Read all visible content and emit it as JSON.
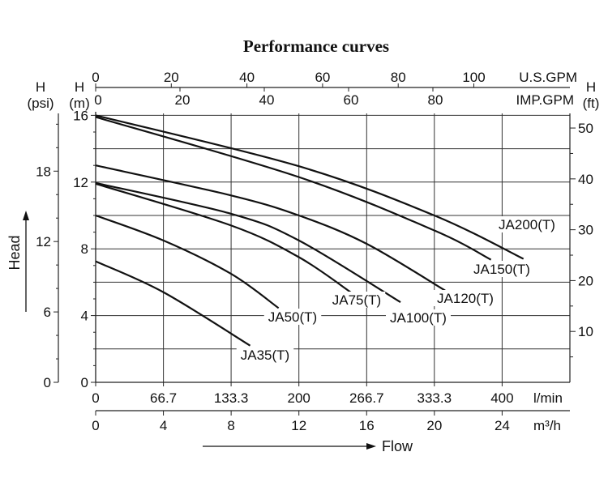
{
  "chart_data": {
    "type": "line",
    "title": "Performance curves",
    "xlabel": "Flow",
    "ylabel": "Head",
    "x_unit": "l/min",
    "y_unit": "m",
    "xlim": [
      0,
      466.7
    ],
    "ylim": [
      0,
      16.2
    ],
    "grid": true,
    "x_ticks": [
      "0",
      "66.7",
      "133.3",
      "200",
      "266.7",
      "333.3",
      "400"
    ],
    "x_tick_values": [
      0,
      66.7,
      133.3,
      200,
      266.7,
      333.3,
      400
    ],
    "m3h_axis": {
      "label": "m³/h",
      "ticks": [
        "0",
        "4",
        "8",
        "12",
        "16",
        "20",
        "24"
      ]
    },
    "usgpm_axis": {
      "label": "U.S.GPM",
      "ticks": [
        "0",
        "20",
        "40",
        "60",
        "80",
        "100"
      ]
    },
    "impgpm_axis": {
      "label": "IMP.GPM",
      "ticks": [
        "0",
        "20",
        "40",
        "60",
        "80"
      ]
    },
    "m_axis": {
      "label_h": "H",
      "label_unit": "(m)",
      "ticks": [
        "0",
        "4",
        "8",
        "12",
        "16"
      ],
      "values": [
        0,
        4,
        8,
        12,
        16
      ]
    },
    "psi_axis": {
      "label_h": "H",
      "label_unit": "(psi)",
      "ticks": [
        "0",
        "6",
        "12",
        "18"
      ],
      "values": [
        0,
        6,
        12,
        18
      ]
    },
    "ft_axis": {
      "label_h": "H",
      "label_unit": "(ft)",
      "ticks": [
        "10",
        "20",
        "30",
        "40",
        "50"
      ],
      "values": [
        10,
        20,
        30,
        40,
        50
      ]
    },
    "series": [
      {
        "name": "JA200(T)",
        "x": [
          0,
          200,
          333.3,
          421
        ],
        "y": [
          16.0,
          12.95,
          10.0,
          7.4
        ]
      },
      {
        "name": "JA150(T)",
        "x": [
          0,
          200,
          333.3,
          389
        ],
        "y": [
          15.9,
          12.3,
          9.1,
          7.35
        ]
      },
      {
        "name": "JA120(T)",
        "x": [
          0,
          133.3,
          200,
          266.7,
          344
        ],
        "y": [
          13.0,
          11.2,
          10.0,
          8.3,
          5.5
        ]
      },
      {
        "name": "JA100(T)",
        "x": [
          0,
          133.3,
          200,
          300
        ],
        "y": [
          11.95,
          10.1,
          8.5,
          4.8
        ]
      },
      {
        "name": "JA75(T)",
        "x": [
          0,
          133.3,
          200,
          251
        ],
        "y": [
          11.9,
          9.4,
          7.5,
          5.4
        ]
      },
      {
        "name": "JA50(T)",
        "x": [
          0,
          66.7,
          133.3,
          180
        ],
        "y": [
          10.0,
          8.5,
          6.5,
          4.45
        ]
      },
      {
        "name": "JA35(T)",
        "x": [
          0,
          66.7,
          152
        ],
        "y": [
          7.25,
          5.4,
          2.2
        ]
      }
    ]
  }
}
